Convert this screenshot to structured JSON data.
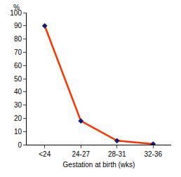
{
  "chart_data": {
    "type": "line",
    "xlabel": "Gestation at birth (wks)",
    "ylabel": "%",
    "categories": [
      "<24",
      "24-27",
      "28-31",
      "32-36"
    ],
    "values": [
      90,
      18,
      3,
      0.5
    ],
    "color": "#ff3300",
    "marker": "diamond",
    "ylim": [
      0,
      100
    ],
    "yticks": [
      0,
      10,
      20,
      30,
      40,
      50,
      60,
      70,
      80,
      90,
      100
    ],
    "grid": false
  }
}
